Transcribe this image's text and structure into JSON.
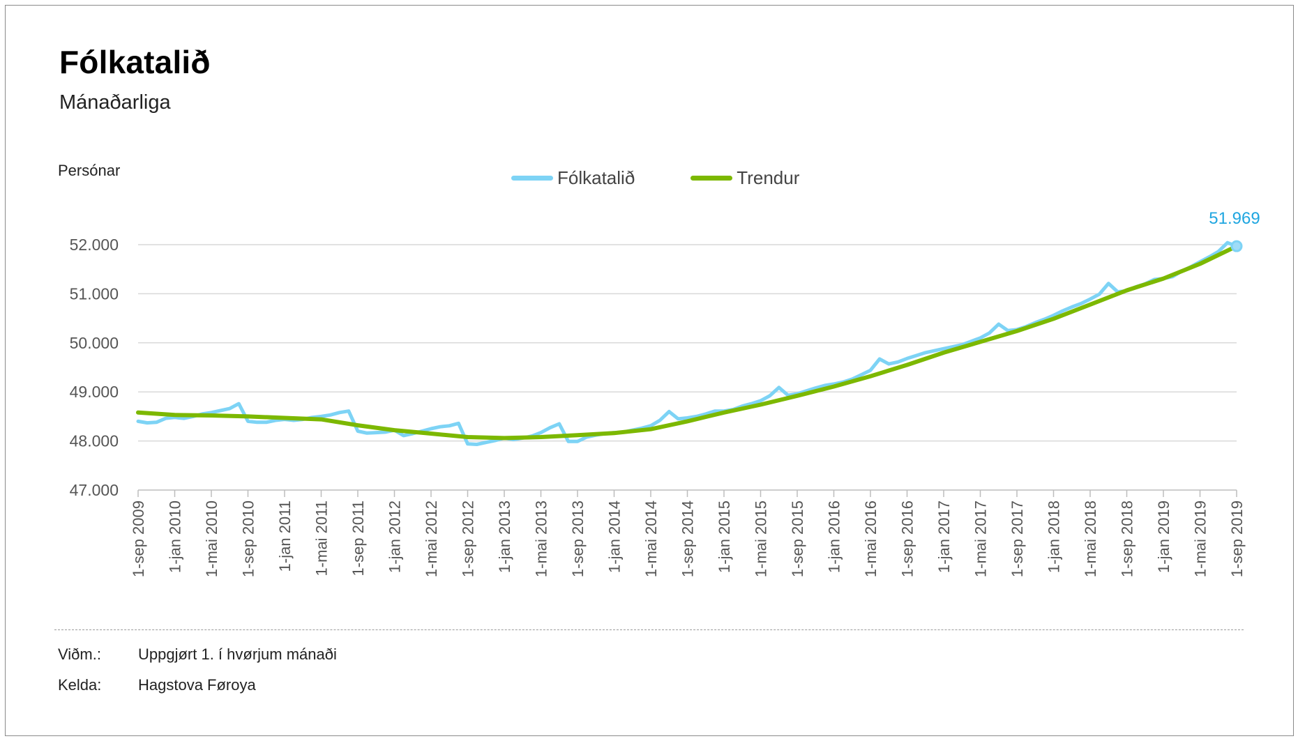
{
  "title": "Fólkatalið",
  "subtitle": "Mánaðarliga",
  "y_unit": "Persónar",
  "legend": [
    {
      "label": "Fólkatalið",
      "color": "#7dd3f5"
    },
    {
      "label": "Trendur",
      "color": "#7cb800"
    }
  ],
  "last_value_label": "51.969",
  "notes": [
    {
      "key": "Viðm.:",
      "value": "Uppgjørt 1. í hvørjum mánaði"
    },
    {
      "key": "Kelda:",
      "value": "Hagstova Føroya"
    }
  ],
  "chart_data": {
    "type": "line",
    "x_tick_labels": [
      "1-sep 2009",
      "1-jan 2010",
      "1-mai 2010",
      "1-sep 2010",
      "1-jan 2011",
      "1-mai 2011",
      "1-sep 2011",
      "1-jan 2012",
      "1-mai 2012",
      "1-sep 2012",
      "1-jan 2013",
      "1-mai 2013",
      "1-sep 2013",
      "1-jan 2014",
      "1-mai 2014",
      "1-sep 2014",
      "1-jan 2015",
      "1-mai 2015",
      "1-sep 2015",
      "1-jan 2016",
      "1-mai 2016",
      "1-sep 2016",
      "1-jan 2017",
      "1-mai 2017",
      "1-sep 2017",
      "1-jan 2018",
      "1-mai 2018",
      "1-sep 2018",
      "1-jan 2019",
      "1-mai 2019",
      "1-sep 2019"
    ],
    "y_tick_labels": [
      "47.000",
      "48.000",
      "49.000",
      "50.000",
      "51.000",
      "52.000"
    ],
    "ylim": [
      47000,
      52000
    ],
    "x_range": [
      "2009-09",
      "2019-09"
    ],
    "grid": "horizontal",
    "legend_position": "top-center",
    "series": [
      {
        "name": "Fólkatalið",
        "color": "#7dd3f5",
        "x": [
          "2009-09",
          "2009-10",
          "2009-11",
          "2009-12",
          "2010-01",
          "2010-02",
          "2010-03",
          "2010-04",
          "2010-05",
          "2010-06",
          "2010-07",
          "2010-08",
          "2010-09",
          "2010-10",
          "2010-11",
          "2010-12",
          "2011-01",
          "2011-02",
          "2011-03",
          "2011-04",
          "2011-05",
          "2011-06",
          "2011-07",
          "2011-08",
          "2011-09",
          "2011-10",
          "2011-11",
          "2011-12",
          "2012-01",
          "2012-02",
          "2012-03",
          "2012-04",
          "2012-05",
          "2012-06",
          "2012-07",
          "2012-08",
          "2012-09",
          "2012-10",
          "2012-11",
          "2012-12",
          "2013-01",
          "2013-02",
          "2013-03",
          "2013-04",
          "2013-05",
          "2013-06",
          "2013-07",
          "2013-08",
          "2013-09",
          "2013-10",
          "2013-11",
          "2013-12",
          "2014-01",
          "2014-02",
          "2014-03",
          "2014-04",
          "2014-05",
          "2014-06",
          "2014-07",
          "2014-08",
          "2014-09",
          "2014-10",
          "2014-11",
          "2014-12",
          "2015-01",
          "2015-02",
          "2015-03",
          "2015-04",
          "2015-05",
          "2015-06",
          "2015-07",
          "2015-08",
          "2015-09",
          "2015-10",
          "2015-11",
          "2015-12",
          "2016-01",
          "2016-02",
          "2016-03",
          "2016-04",
          "2016-05",
          "2016-06",
          "2016-07",
          "2016-08",
          "2016-09",
          "2016-10",
          "2016-11",
          "2016-12",
          "2017-01",
          "2017-02",
          "2017-03",
          "2017-04",
          "2017-05",
          "2017-06",
          "2017-07",
          "2017-08",
          "2017-09",
          "2017-10",
          "2017-11",
          "2017-12",
          "2018-01",
          "2018-02",
          "2018-03",
          "2018-04",
          "2018-05",
          "2018-06",
          "2018-07",
          "2018-08",
          "2018-09",
          "2018-10",
          "2018-11",
          "2018-12",
          "2019-01",
          "2019-02",
          "2019-03",
          "2019-04",
          "2019-05",
          "2019-06",
          "2019-07",
          "2019-08",
          "2019-09"
        ],
        "values": [
          48400,
          48370,
          48380,
          48460,
          48480,
          48460,
          48500,
          48550,
          48580,
          48620,
          48660,
          48760,
          48400,
          48380,
          48380,
          48420,
          48440,
          48420,
          48440,
          48480,
          48500,
          48530,
          48580,
          48610,
          48200,
          48160,
          48170,
          48180,
          48220,
          48110,
          48150,
          48200,
          48250,
          48290,
          48310,
          48360,
          47940,
          47930,
          47970,
          48010,
          48060,
          48030,
          48060,
          48100,
          48170,
          48270,
          48350,
          47990,
          47990,
          48080,
          48120,
          48150,
          48170,
          48180,
          48220,
          48260,
          48310,
          48420,
          48600,
          48450,
          48470,
          48500,
          48550,
          48610,
          48610,
          48640,
          48710,
          48760,
          48820,
          48920,
          49090,
          48930,
          48960,
          49020,
          49080,
          49130,
          49160,
          49200,
          49260,
          49350,
          49440,
          49670,
          49570,
          49610,
          49680,
          49740,
          49800,
          49840,
          49880,
          49920,
          49960,
          50030,
          50100,
          50200,
          50380,
          50250,
          50270,
          50330,
          50410,
          50480,
          50560,
          50650,
          50730,
          50800,
          50890,
          50990,
          51210,
          51040,
          51060,
          51140,
          51200,
          51290,
          51310,
          51350,
          51460,
          51550,
          51650,
          51750,
          51860,
          52040,
          51969
        ]
      },
      {
        "name": "Trendur",
        "color": "#7cb800",
        "x": [
          "2009-09",
          "2010-01",
          "2010-05",
          "2010-09",
          "2011-01",
          "2011-05",
          "2011-09",
          "2012-01",
          "2012-05",
          "2012-09",
          "2013-01",
          "2013-05",
          "2013-09",
          "2014-01",
          "2014-05",
          "2014-09",
          "2015-01",
          "2015-05",
          "2015-09",
          "2016-01",
          "2016-05",
          "2016-09",
          "2017-01",
          "2017-05",
          "2017-09",
          "2018-01",
          "2018-05",
          "2018-09",
          "2019-01",
          "2019-05",
          "2019-09"
        ],
        "values": [
          48580,
          48530,
          48520,
          48500,
          48470,
          48440,
          48320,
          48220,
          48150,
          48080,
          48060,
          48080,
          48120,
          48160,
          48240,
          48400,
          48580,
          48740,
          48920,
          49110,
          49320,
          49550,
          49800,
          50020,
          50240,
          50490,
          50780,
          51070,
          51310,
          51610,
          51969
        ]
      }
    ]
  }
}
